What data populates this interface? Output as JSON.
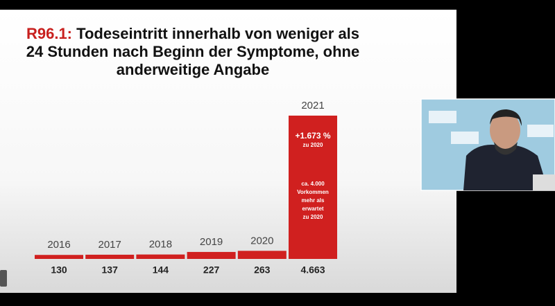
{
  "chart_data": {
    "type": "bar",
    "title": {
      "code": "R96.1:",
      "lines": [
        "Todeseintritt innerhalb von weniger als",
        "24 Stunden nach Beginn der Symptome, ohne",
        "anderweitige Angabe"
      ]
    },
    "categories": [
      "2016",
      "2017",
      "2018",
      "2019",
      "2020",
      "2021"
    ],
    "values": [
      130,
      137,
      144,
      227,
      263,
      4663
    ],
    "value_labels": [
      "130",
      "137",
      "144",
      "227",
      "263",
      "4.663"
    ],
    "color": "#d0201f",
    "annotations": {
      "change": "+1.673 %",
      "change_ref": "zu 2020",
      "excess": [
        "ca. 4.000",
        "Vorkommen",
        "mehr als",
        "erwartet",
        "zu 2020"
      ]
    }
  }
}
